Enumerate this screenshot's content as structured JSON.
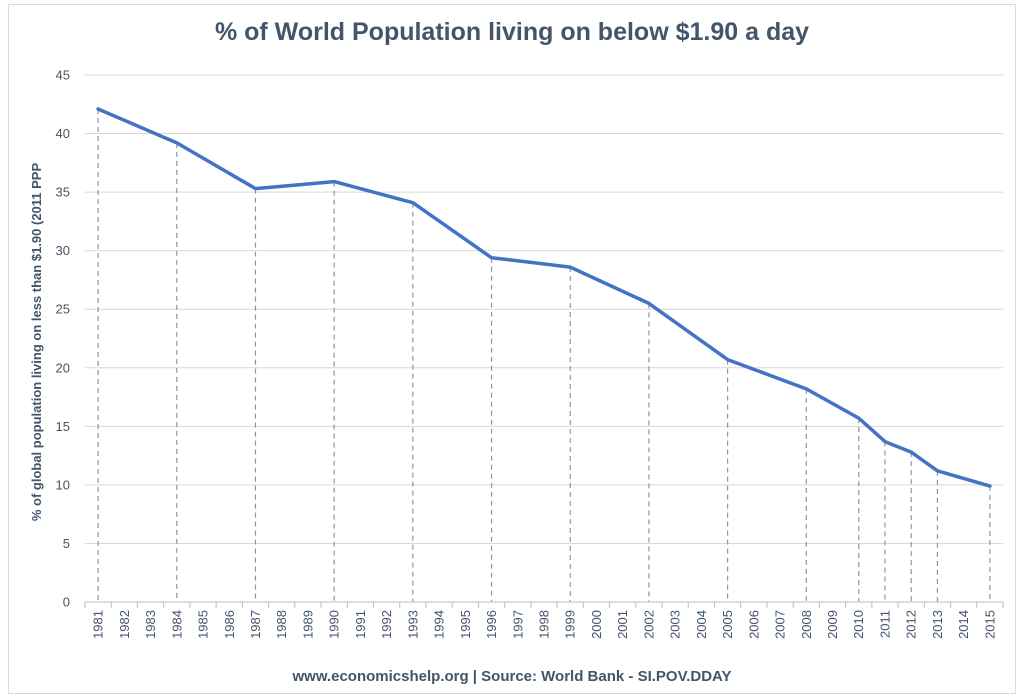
{
  "chart_data": {
    "type": "line",
    "title": "% of World Population living on below $1.90 a day",
    "ylabel": "% of global population living on less than $1.90 (2011 PPP",
    "xlabel": "",
    "source": "www.economicshelp.org | Source: World Bank - SI.POV.DDAY",
    "ylim": [
      0,
      45
    ],
    "yticks": [
      0,
      5,
      10,
      15,
      20,
      25,
      30,
      35,
      40,
      45
    ],
    "categories": [
      "1981",
      "1982",
      "1983",
      "1984",
      "1985",
      "1986",
      "1987",
      "1988",
      "1989",
      "1990",
      "1991",
      "1992",
      "1993",
      "1994",
      "1995",
      "1996",
      "1997",
      "1998",
      "1999",
      "2000",
      "2001",
      "2002",
      "2003",
      "2004",
      "2005",
      "2006",
      "2007",
      "2008",
      "2009",
      "2010",
      "2011",
      "2012",
      "2013",
      "2014",
      "2015"
    ],
    "series": [
      {
        "name": "% of World Population living on below $1.90 a day",
        "color": "#4472c4",
        "points": [
          {
            "x": "1981",
            "y": 42.1
          },
          {
            "x": "1984",
            "y": 39.2
          },
          {
            "x": "1987",
            "y": 35.3
          },
          {
            "x": "1990",
            "y": 35.9
          },
          {
            "x": "1993",
            "y": 34.1
          },
          {
            "x": "1996",
            "y": 29.4
          },
          {
            "x": "1999",
            "y": 28.6
          },
          {
            "x": "2002",
            "y": 25.5
          },
          {
            "x": "2005",
            "y": 20.7
          },
          {
            "x": "2008",
            "y": 18.2
          },
          {
            "x": "2010",
            "y": 15.7
          },
          {
            "x": "2011",
            "y": 13.7
          },
          {
            "x": "2012",
            "y": 12.8
          },
          {
            "x": "2013",
            "y": 11.2
          },
          {
            "x": "2015",
            "y": 9.9
          }
        ]
      }
    ],
    "gridlines": true,
    "droplines": true,
    "legend": "none"
  }
}
